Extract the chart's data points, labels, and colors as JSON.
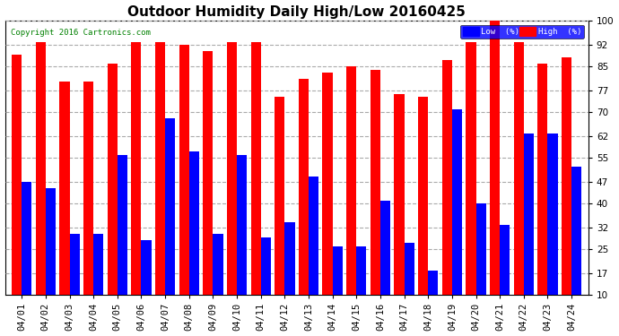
{
  "title": "Outdoor Humidity Daily High/Low 20160425",
  "copyright": "Copyright 2016 Cartronics.com",
  "categories": [
    "04/01",
    "04/02",
    "04/03",
    "04/04",
    "04/05",
    "04/06",
    "04/07",
    "04/08",
    "04/09",
    "04/10",
    "04/11",
    "04/12",
    "04/13",
    "04/14",
    "04/15",
    "04/16",
    "04/17",
    "04/18",
    "04/19",
    "04/20",
    "04/21",
    "04/22",
    "04/23",
    "04/24"
  ],
  "high": [
    89,
    93,
    80,
    80,
    86,
    93,
    93,
    92,
    90,
    93,
    93,
    75,
    81,
    83,
    85,
    84,
    76,
    75,
    87,
    93,
    100,
    93,
    86,
    88
  ],
  "low": [
    47,
    45,
    30,
    30,
    56,
    28,
    68,
    57,
    30,
    56,
    29,
    34,
    49,
    26,
    26,
    41,
    27,
    18,
    71,
    40,
    33,
    63,
    63,
    52
  ],
  "bar_color_high": "#ff0000",
  "bar_color_low": "#0000ff",
  "background_color": "#ffffff",
  "plot_bg_color": "#ffffff",
  "yticks": [
    10,
    17,
    25,
    32,
    40,
    47,
    55,
    62,
    70,
    77,
    85,
    92,
    100
  ],
  "ymin": 10,
  "ymax": 100,
  "legend_low_label": "Low  (%)",
  "legend_high_label": "High  (%)",
  "title_fontsize": 11,
  "tick_fontsize": 7.5,
  "bar_width": 0.42
}
